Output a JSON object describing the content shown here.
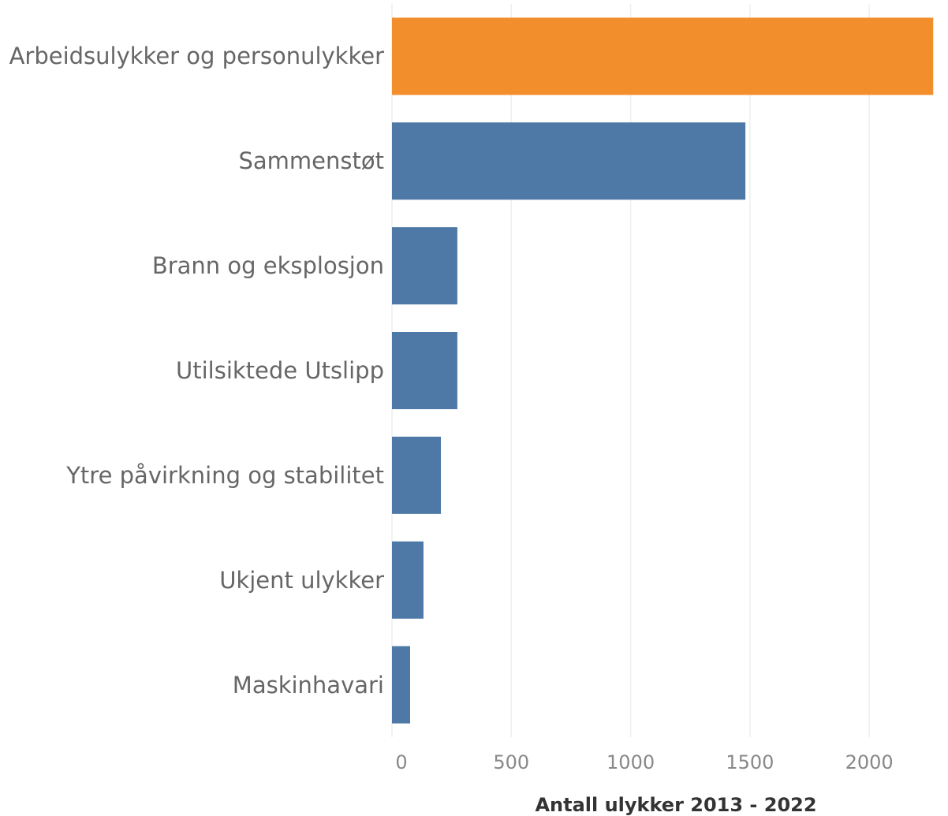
{
  "chart_data": {
    "type": "bar",
    "orientation": "horizontal",
    "categories": [
      "Arbeidsulykker og personulykker",
      "Sammenstøt",
      "Brann og eksplosjon",
      "Utilsiktede Utslipp",
      "Ytre påvirkning og stabilitet",
      "Ukjent ulykker",
      "Maskinhavari"
    ],
    "values": [
      2268,
      1481,
      274,
      274,
      205,
      132,
      76
    ],
    "colors": [
      "#f28e2b",
      "#4e79a7",
      "#4e79a7",
      "#4e79a7",
      "#4e79a7",
      "#4e79a7",
      "#4e79a7"
    ],
    "xlim": [
      0,
      2330
    ],
    "xticks": [
      0,
      500,
      1000,
      1500,
      2000
    ],
    "grid": true,
    "xlabel": "Antall ulykker 2013 - 2022"
  }
}
